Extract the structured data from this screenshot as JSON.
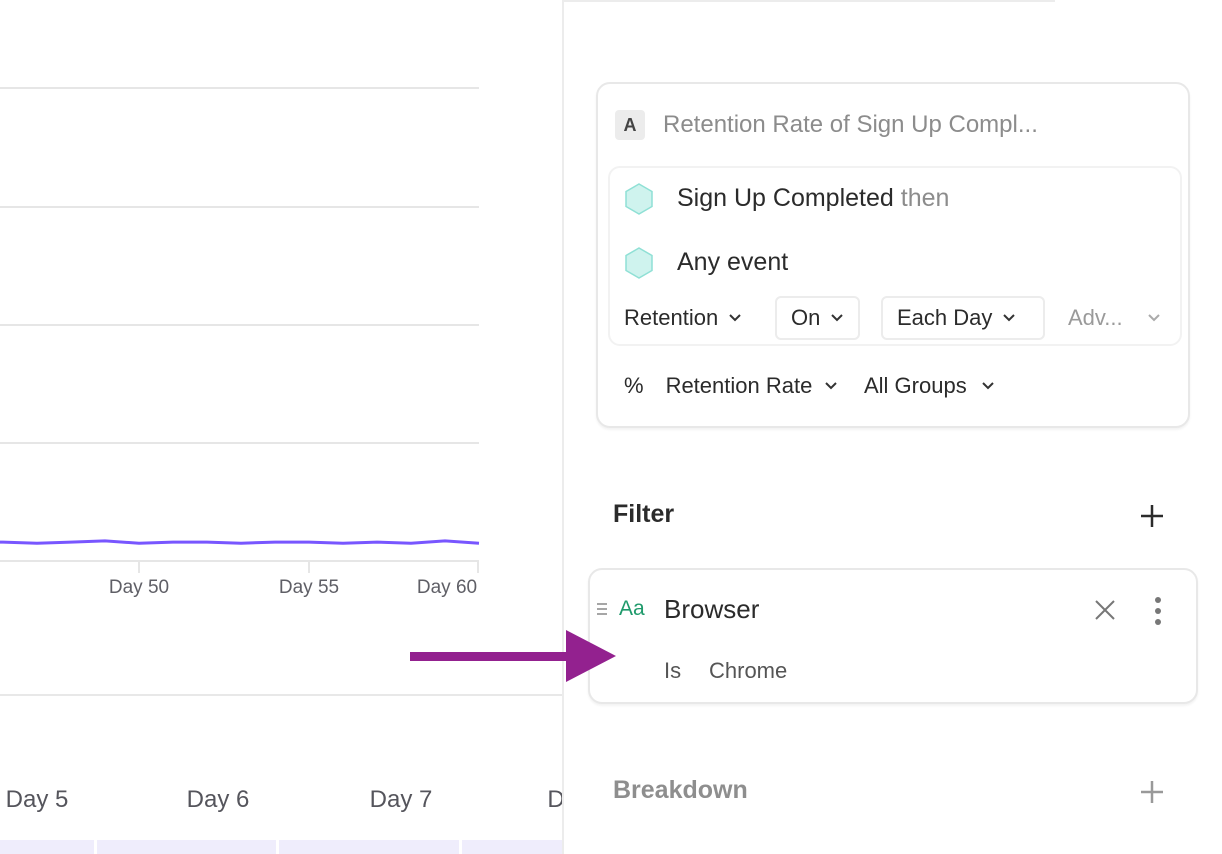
{
  "chart_data": {
    "type": "line",
    "x": [
      46,
      47,
      48,
      49,
      50,
      51,
      52,
      53,
      54,
      55,
      56,
      57,
      58,
      59,
      60
    ],
    "series": [
      {
        "values": [
          0.16,
          0.15,
          0.16,
          0.17,
          0.15,
          0.16,
          0.16,
          0.15,
          0.16,
          0.16,
          0.15,
          0.16,
          0.15,
          0.17,
          0.15
        ]
      }
    ],
    "x_tick_labels": [
      "Day 50",
      "Day 55",
      "Day 60"
    ],
    "xlim": [
      45,
      60
    ],
    "ylim": [
      0,
      4
    ],
    "grid": true,
    "line_color": "#7856ff"
  },
  "table_header": {
    "days": [
      "Day 5",
      "Day 6",
      "Day 7",
      "D"
    ]
  },
  "query": {
    "letter": "A",
    "title": "Retention Rate of Sign Up Compl...",
    "first_event": "Sign Up Completed",
    "then_label": "then",
    "second_event": "Any event",
    "retention_type": "Retention",
    "on_label": "On",
    "interval": "Each Day",
    "advanced": "Adv...",
    "measure_symbol": "%",
    "measure": "Retention Rate",
    "groups": "All Groups"
  },
  "filter": {
    "heading": "Filter",
    "property_type": "Aa",
    "property": "Browser",
    "operator": "Is",
    "value": "Chrome"
  },
  "breakdown": {
    "heading": "Breakdown"
  },
  "colors": {
    "accent": "#7856ff",
    "annotation_arrow": "#93218f",
    "event_hex": "#cff3ee",
    "type_icon": "#1f9a6b"
  }
}
